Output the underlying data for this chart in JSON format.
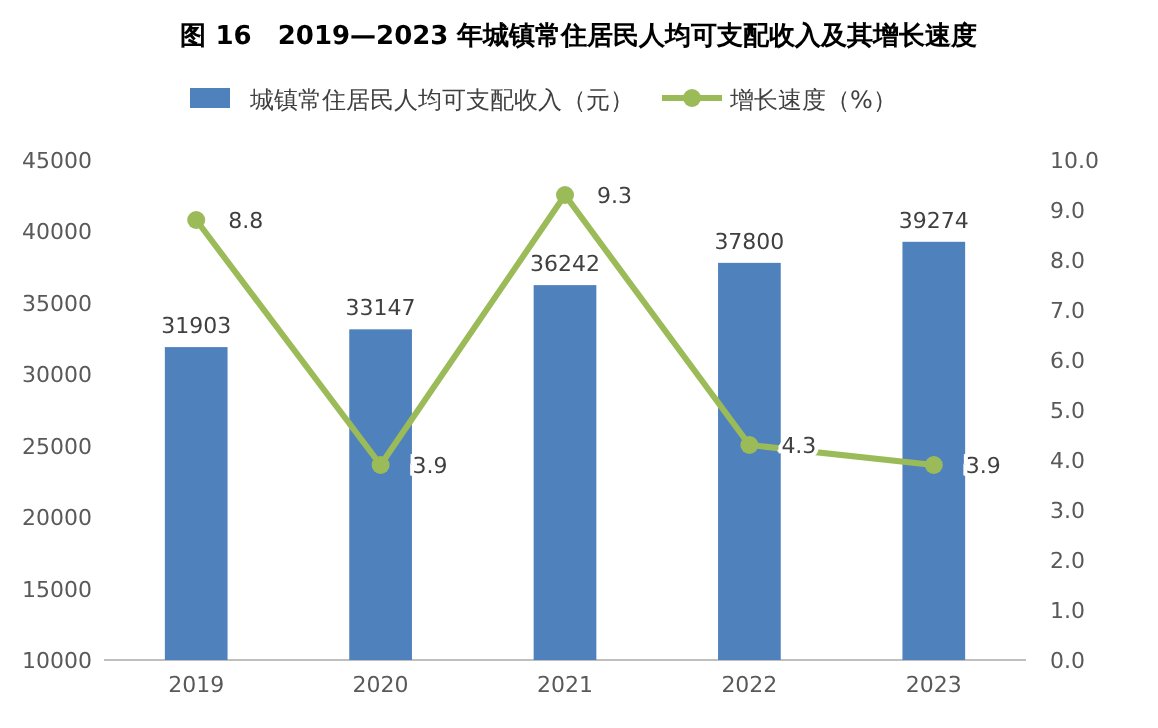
{
  "chart_data": {
    "type": "bar",
    "title": "图 16　2019—2023 年城镇常住居民人均可支配收入及其增长速度",
    "categories": [
      "2019",
      "2020",
      "2021",
      "2022",
      "2023"
    ],
    "series": [
      {
        "name": "城镇常住居民人均可支配收入（元）",
        "color": "#4f81bd",
        "values": [
          31903,
          33147,
          36242,
          37800,
          39274
        ]
      },
      {
        "name": "增长速度（%）",
        "type": "line",
        "axis": "y2",
        "color": "#9bbb59",
        "marker": "circle",
        "values": [
          8.8,
          3.9,
          9.3,
          4.3,
          3.9
        ]
      }
    ],
    "ylim": [
      10000,
      45000
    ],
    "yticks": [
      10000,
      15000,
      20000,
      25000,
      30000,
      35000,
      40000,
      45000
    ],
    "y2lim": [
      0,
      10
    ],
    "y2ticks": [
      {
        "value": 0,
        "label": "0.0"
      },
      {
        "value": 1,
        "label": "1.0"
      },
      {
        "value": 2,
        "label": "2.0"
      },
      {
        "value": 3,
        "label": "3.0"
      },
      {
        "value": 4,
        "label": "4.0"
      },
      {
        "value": 5,
        "label": "5.0"
      },
      {
        "value": 6,
        "label": "6.0"
      },
      {
        "value": 7,
        "label": "7.0"
      },
      {
        "value": 8,
        "label": "8.0"
      },
      {
        "value": 9,
        "label": "9.0"
      },
      {
        "value": 10,
        "label": "10.0"
      }
    ],
    "data_labels": true,
    "legend": "top",
    "grid": false
  }
}
